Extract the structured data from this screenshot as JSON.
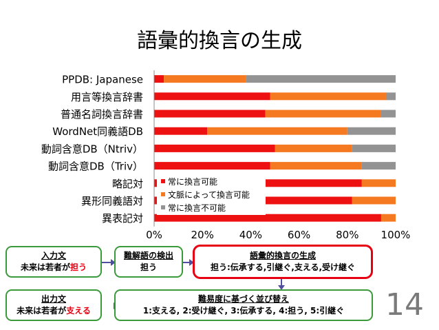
{
  "title": "語彙的換言の生成",
  "chart_data": {
    "type": "bar",
    "orientation": "horizontal",
    "stacked": true,
    "categories": [
      "PPDB: Japanese",
      "用言等換言辞書",
      "普通名詞換言辞書",
      "WordNet同義語DB",
      "動詞含意DB（Ntriv）",
      "動詞含意DB（Triv）",
      "略記対",
      "異形同義語対",
      "異表記対"
    ],
    "series": [
      {
        "name": "常に換言可能",
        "color": "#ee1111",
        "values": [
          4,
          48,
          46,
          22,
          50,
          48,
          86,
          82,
          94
        ]
      },
      {
        "name": "文脈によって換言可能",
        "color": "#f47920",
        "values": [
          34,
          48,
          48,
          58,
          32,
          38,
          14,
          18,
          6
        ]
      },
      {
        "name": "常に換言不可能",
        "color": "#939393",
        "values": [
          62,
          4,
          6,
          20,
          18,
          14,
          0,
          0,
          0
        ]
      }
    ],
    "xlim": [
      0,
      100
    ],
    "xticks": [
      "0%",
      "20%",
      "40%",
      "60%",
      "80%",
      "100%"
    ],
    "legend_position": "inside-lower-left"
  },
  "pipeline": {
    "input": {
      "title": "入力文",
      "prefix": "未来は若者が",
      "highlight": "担う"
    },
    "detect": {
      "title": "難解語の検出",
      "value": "担う"
    },
    "generate": {
      "title": "語彙的換言の生成",
      "value": "担う:伝承する,引継ぐ,支える,受け継ぐ"
    },
    "output": {
      "title": "出力文",
      "prefix": "未来は若者が",
      "highlight": "支える"
    },
    "rank": {
      "title": "難易度に基づく並び替え",
      "value": "1:支える, 2:受け継ぐ, 3:伝承する, 4:担う, 5:引継ぐ"
    }
  },
  "page_number": "14"
}
